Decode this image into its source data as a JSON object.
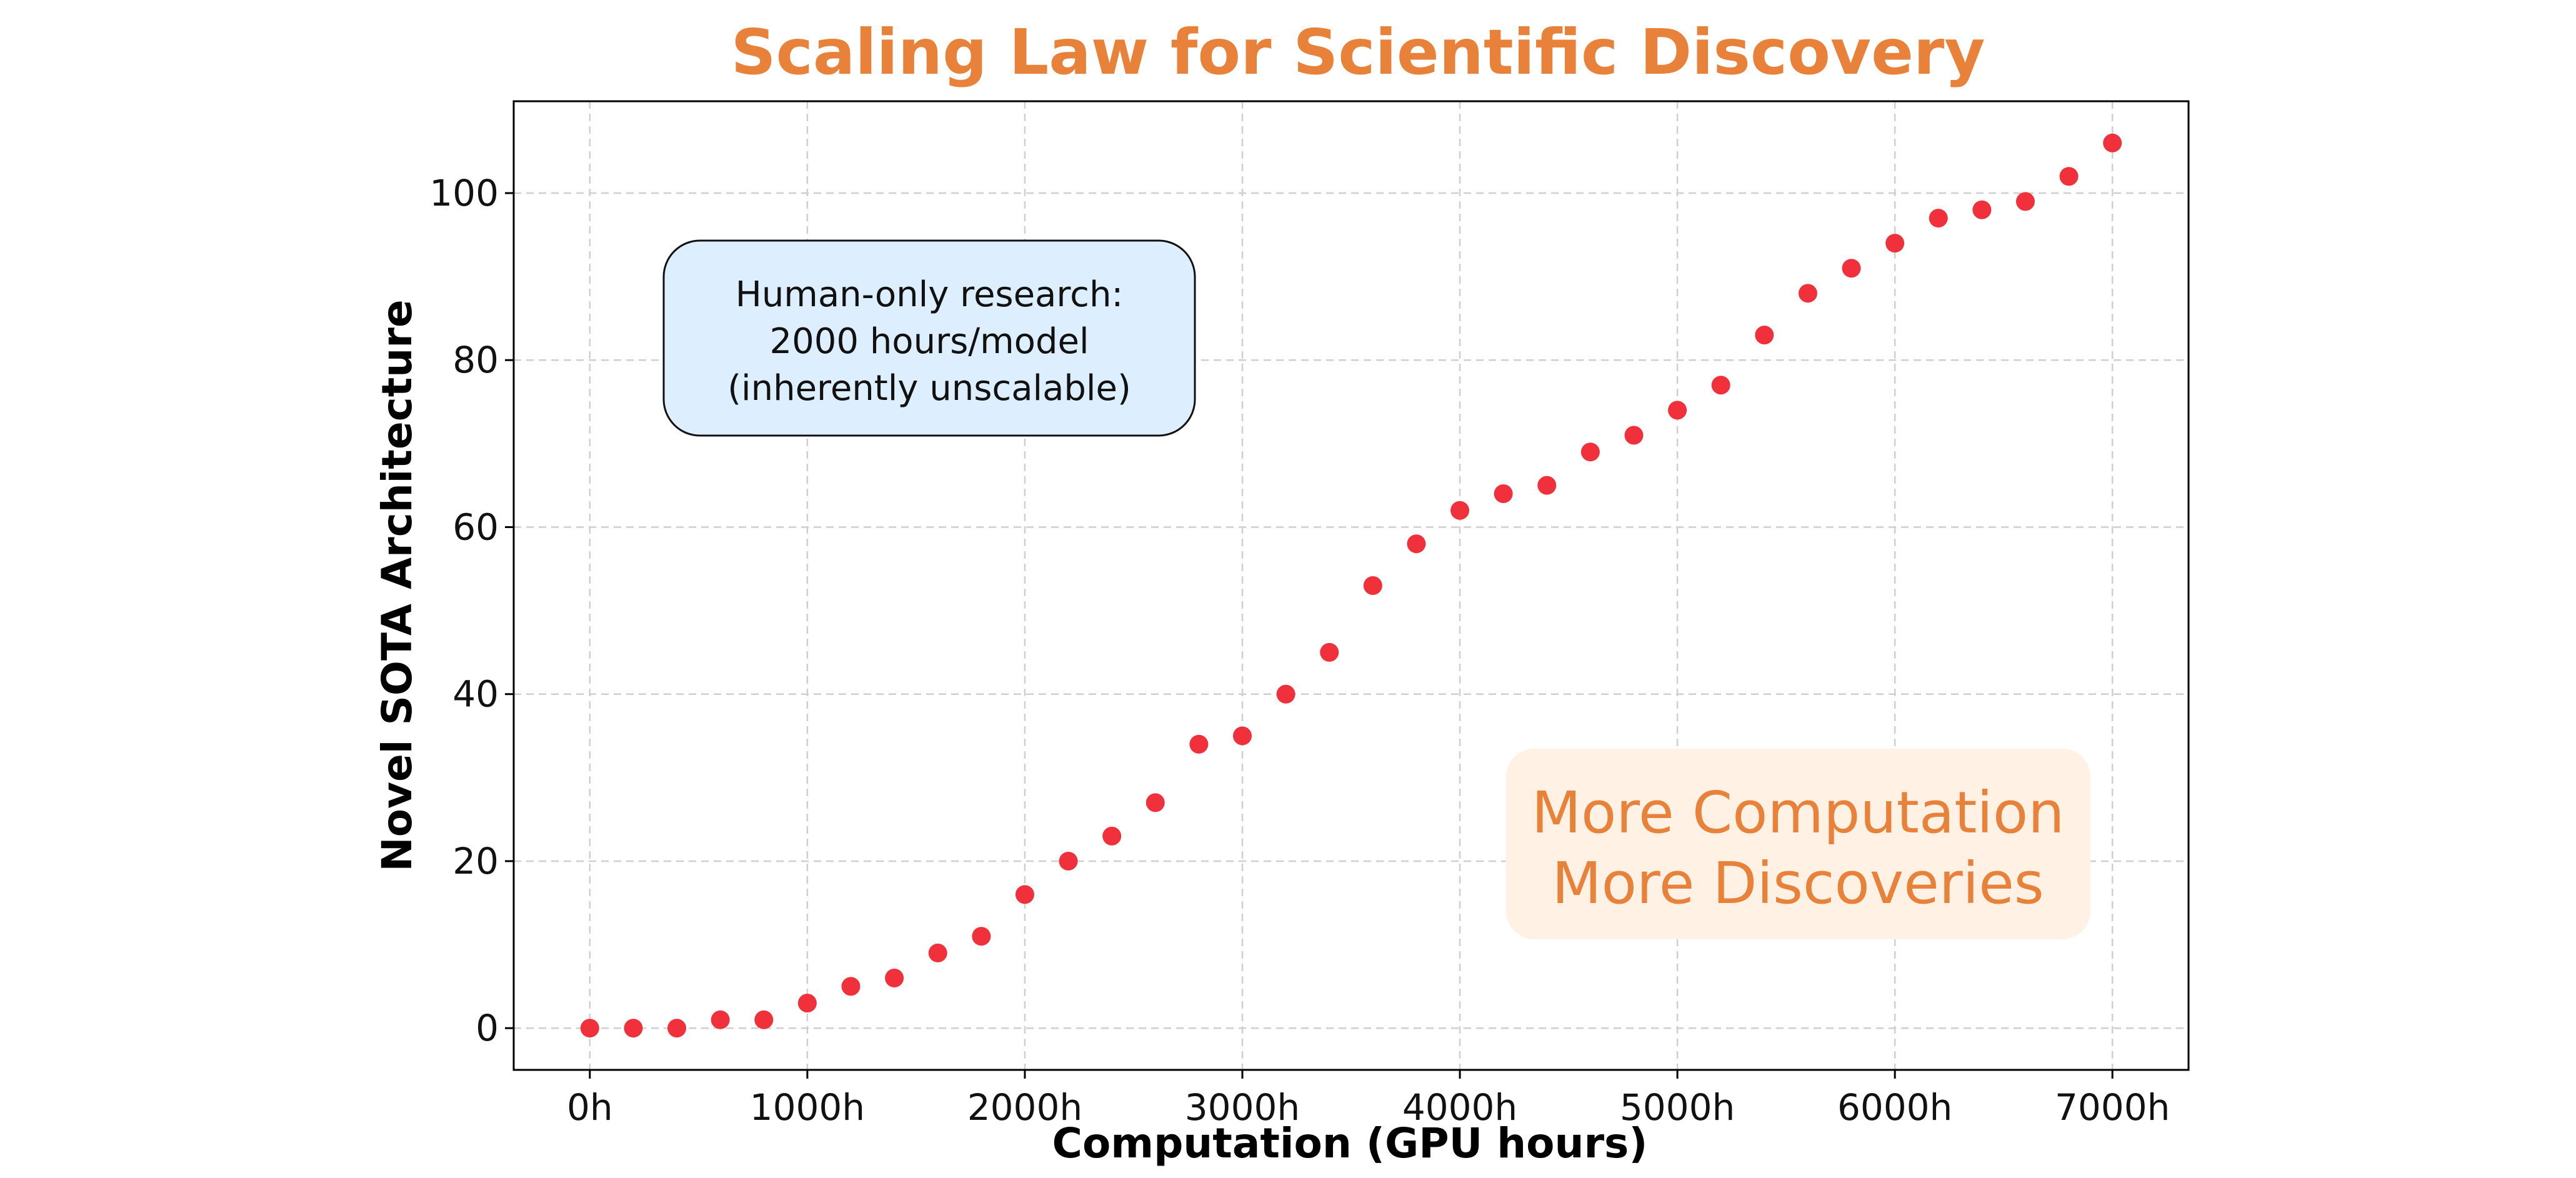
{
  "chart_data": {
    "type": "scatter",
    "title": "Scaling Law for Scientific Discovery",
    "xlabel": "Computation (GPU hours)",
    "ylabel": "Novel SOTA Architecture",
    "xlim": [
      -350,
      7350
    ],
    "ylim": [
      -5,
      111
    ],
    "x_ticks": [
      0,
      1000,
      2000,
      3000,
      4000,
      5000,
      6000,
      7000
    ],
    "x_tick_labels": [
      "0h",
      "1000h",
      "2000h",
      "3000h",
      "4000h",
      "5000h",
      "6000h",
      "7000h"
    ],
    "y_ticks": [
      0,
      20,
      40,
      60,
      80,
      100
    ],
    "y_tick_labels": [
      "0",
      "20",
      "40",
      "60",
      "80",
      "100"
    ],
    "grid": true,
    "series": [
      {
        "name": "discoveries",
        "color": "#F0303A",
        "x": [
          0,
          200,
          400,
          600,
          800,
          1000,
          1200,
          1400,
          1600,
          1800,
          2000,
          2200,
          2400,
          2600,
          2800,
          3000,
          3200,
          3400,
          3600,
          3800,
          4000,
          4200,
          4400,
          4600,
          4800,
          5000,
          5200,
          5400,
          5600,
          5800,
          6000,
          6200,
          6400,
          6600,
          6800,
          7000
        ],
        "y": [
          0,
          0,
          0,
          1,
          1,
          3,
          5,
          6,
          9,
          11,
          16,
          20,
          23,
          27,
          34,
          35,
          40,
          45,
          53,
          58,
          62,
          64,
          65,
          69,
          71,
          74,
          77,
          83,
          88,
          91,
          94,
          97,
          98,
          99,
          102,
          106
        ]
      }
    ],
    "annotations": {
      "human_box": {
        "lines": [
          "Human-only research:",
          "2000 hours/model",
          "(inherently unscalable)"
        ],
        "fill": "#DDEEFF",
        "border": "#111111"
      },
      "more_box": {
        "lines": [
          "More Computation",
          "More Discoveries"
        ],
        "fill": "#FFF1E4",
        "color": "#E8823A"
      }
    }
  }
}
